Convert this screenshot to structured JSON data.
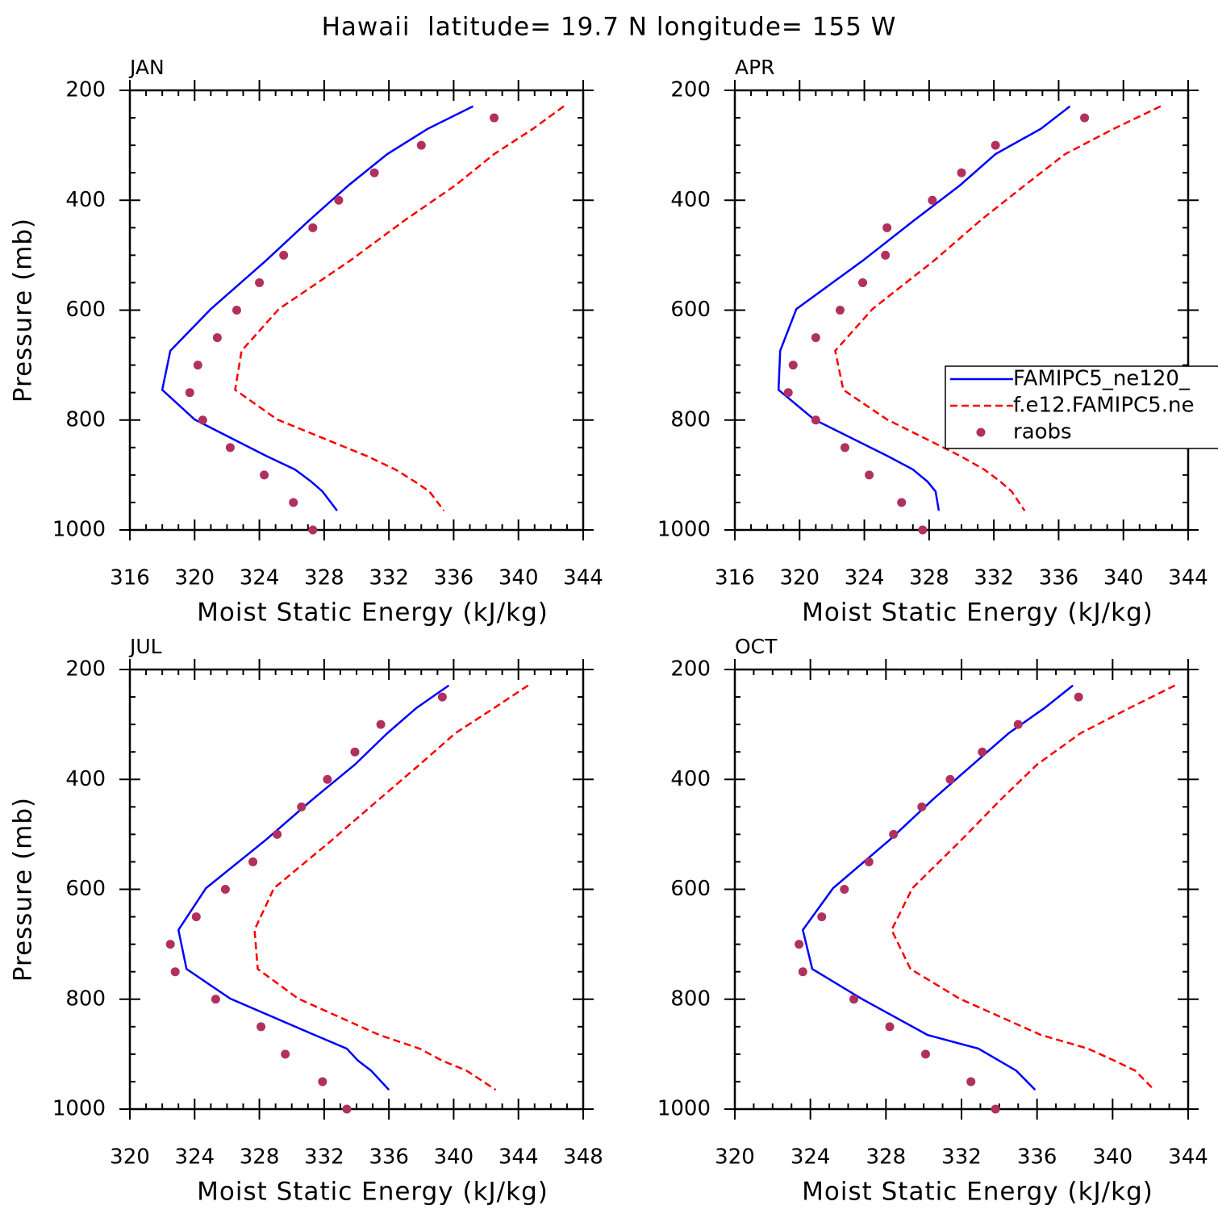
{
  "title": "Hawaii  latitude= 19.7 N longitude= 155 W",
  "chart_data": [
    {
      "type": "line",
      "title": "JAN",
      "xlabel": "Moist Static Energy (kJ/kg)",
      "ylabel": "Pressure (mb)",
      "xlim": [
        316,
        344
      ],
      "xticks": [
        316,
        320,
        324,
        328,
        332,
        336,
        340,
        344
      ],
      "ylim": [
        1000,
        200
      ],
      "yticks": [
        200,
        400,
        600,
        800,
        1000
      ],
      "series": [
        {
          "color": "#0000ff",
          "style": "solid",
          "x": [
            337.2,
            334.4,
            331.9,
            329.5,
            327.1,
            324.4,
            321.0,
            318.5,
            318.0,
            320.0,
            324.4,
            326.2,
            327.2,
            327.9,
            328.8
          ],
          "y": [
            229,
            270,
            316,
            373,
            436,
            510,
            598,
            674,
            745,
            799,
            865,
            890,
            912,
            930,
            965
          ]
        },
        {
          "color": "#ff0000",
          "style": "dashed",
          "x": [
            342.8,
            340.9,
            338.5,
            336.1,
            333.0,
            329.6,
            325.2,
            322.9,
            322.5,
            325.1,
            330.6,
            332.4,
            333.6,
            334.5,
            335.4
          ],
          "y": [
            229,
            270,
            316,
            373,
            436,
            510,
            598,
            674,
            745,
            799,
            865,
            890,
            912,
            930,
            965
          ]
        },
        {
          "color": "#b03060",
          "style": "dots",
          "x": [
            338.5,
            334.0,
            331.1,
            328.9,
            327.3,
            325.5,
            324.0,
            322.6,
            321.4,
            320.2,
            319.7,
            320.5,
            322.2,
            324.3,
            326.1,
            327.3
          ],
          "y": [
            250,
            300,
            350,
            400,
            450,
            500,
            550,
            600,
            650,
            700,
            750,
            800,
            850,
            900,
            950,
            1000
          ]
        }
      ]
    },
    {
      "type": "line",
      "title": "APR",
      "xlabel": "Moist Static Energy (kJ/kg)",
      "xlim": [
        316,
        344
      ],
      "xticks": [
        316,
        320,
        324,
        328,
        332,
        336,
        340,
        344
      ],
      "ylim": [
        1000,
        200
      ],
      "yticks": [
        200,
        400,
        600,
        800,
        1000
      ],
      "legend": "right",
      "series": [
        {
          "name": "FAMIPC5_ne120_",
          "color": "#0000ff",
          "style": "solid",
          "x": [
            336.7,
            334.9,
            332.1,
            329.9,
            327.1,
            323.9,
            319.8,
            318.8,
            318.7,
            320.9,
            325.4,
            327.0,
            327.9,
            328.4,
            328.6
          ],
          "y": [
            229,
            270,
            316,
            373,
            436,
            510,
            598,
            674,
            745,
            799,
            865,
            890,
            912,
            930,
            965
          ]
        },
        {
          "name": "f.e12.FAMIPC5.ne",
          "color": "#ff0000",
          "style": "dashed",
          "x": [
            342.3,
            339.4,
            336.4,
            333.9,
            331.2,
            328.3,
            324.5,
            322.2,
            322.7,
            325.4,
            329.9,
            331.4,
            332.4,
            333.1,
            333.9
          ],
          "y": [
            229,
            270,
            316,
            373,
            436,
            510,
            598,
            674,
            745,
            799,
            865,
            890,
            912,
            930,
            965
          ]
        },
        {
          "name": "raobs",
          "color": "#b03060",
          "style": "dots",
          "x": [
            337.6,
            332.1,
            330.0,
            328.2,
            325.4,
            325.3,
            323.9,
            322.5,
            321.0,
            319.6,
            319.3,
            321.0,
            322.8,
            324.3,
            326.3,
            327.6
          ],
          "y": [
            250,
            300,
            350,
            400,
            450,
            500,
            550,
            600,
            650,
            700,
            750,
            800,
            850,
            900,
            950,
            1000
          ]
        }
      ]
    },
    {
      "type": "line",
      "title": "JUL",
      "xlabel": "Moist Static Energy (kJ/kg)",
      "ylabel": "Pressure (mb)",
      "xlim": [
        320,
        348
      ],
      "xticks": [
        320,
        324,
        328,
        332,
        336,
        340,
        344,
        348
      ],
      "ylim": [
        1000,
        200
      ],
      "yticks": [
        200,
        400,
        600,
        800,
        1000
      ],
      "series": [
        {
          "color": "#0000ff",
          "style": "solid",
          "x": [
            339.7,
            337.7,
            335.9,
            333.9,
            331.3,
            328.4,
            324.7,
            323.0,
            323.5,
            326.2,
            331.4,
            333.4,
            334.1,
            334.9,
            336.0
          ],
          "y": [
            229,
            270,
            316,
            373,
            436,
            510,
            598,
            674,
            745,
            799,
            865,
            890,
            912,
            930,
            965
          ]
        },
        {
          "color": "#ff0000",
          "style": "dashed",
          "x": [
            344.6,
            342.5,
            340.1,
            337.9,
            335.4,
            332.5,
            328.9,
            327.7,
            327.9,
            330.4,
            335.4,
            337.9,
            339.3,
            340.8,
            342.6
          ],
          "y": [
            229,
            270,
            316,
            373,
            436,
            510,
            598,
            674,
            745,
            799,
            865,
            890,
            912,
            930,
            965
          ]
        },
        {
          "color": "#b03060",
          "style": "dots",
          "x": [
            339.3,
            335.5,
            333.9,
            332.2,
            330.6,
            329.1,
            327.6,
            325.9,
            324.1,
            322.5,
            322.8,
            325.3,
            328.1,
            329.6,
            331.9,
            333.4
          ],
          "y": [
            250,
            300,
            350,
            400,
            450,
            500,
            550,
            600,
            650,
            700,
            750,
            800,
            850,
            900,
            950,
            1000
          ]
        }
      ]
    },
    {
      "type": "line",
      "title": "OCT",
      "xlabel": "Moist Static Energy (kJ/kg)",
      "xlim": [
        320,
        344
      ],
      "xticks": [
        320,
        324,
        328,
        332,
        336,
        340,
        344
      ],
      "ylim": [
        1000,
        200
      ],
      "yticks": [
        200,
        400,
        600,
        800,
        1000
      ],
      "series": [
        {
          "color": "#0000ff",
          "style": "solid",
          "x": [
            337.9,
            336.4,
            334.5,
            332.6,
            330.5,
            328.2,
            325.2,
            323.6,
            324.1,
            326.7,
            330.2,
            332.9,
            334.0,
            334.9,
            335.9
          ],
          "y": [
            229,
            270,
            316,
            373,
            436,
            510,
            598,
            674,
            745,
            799,
            865,
            890,
            912,
            930,
            965
          ]
        },
        {
          "color": "#ff0000",
          "style": "dashed",
          "x": [
            343.3,
            340.9,
            338.3,
            336.0,
            334.1,
            332.0,
            329.4,
            328.3,
            329.3,
            331.9,
            336.2,
            338.7,
            340.1,
            341.2,
            342.2
          ],
          "y": [
            229,
            270,
            316,
            373,
            436,
            510,
            598,
            674,
            745,
            799,
            865,
            890,
            912,
            930,
            965
          ]
        },
        {
          "color": "#b03060",
          "style": "dots",
          "x": [
            338.2,
            335.0,
            333.1,
            331.4,
            329.9,
            328.4,
            327.1,
            325.8,
            324.6,
            323.4,
            323.6,
            326.3,
            328.2,
            330.1,
            332.5,
            333.8
          ],
          "y": [
            250,
            300,
            350,
            400,
            450,
            500,
            550,
            600,
            650,
            700,
            750,
            800,
            850,
            900,
            950,
            1000
          ]
        }
      ]
    }
  ]
}
